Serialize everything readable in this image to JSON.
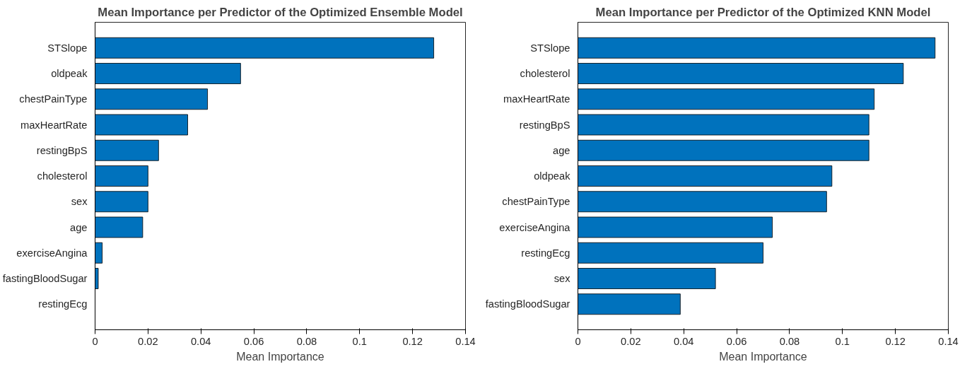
{
  "chart_data": [
    {
      "type": "bar",
      "orientation": "horizontal",
      "title": "Mean Importance per Predictor of the Optimized Ensemble Model",
      "xlabel": "Mean Importance",
      "categories": [
        "STSlope",
        "oldpeak",
        "chestPainType",
        "maxHeartRate",
        "restingBpS",
        "cholesterol",
        "sex",
        "age",
        "exerciseAngina",
        "fastingBloodSugar",
        "restingEcg"
      ],
      "values": [
        0.128,
        0.055,
        0.0425,
        0.035,
        0.024,
        0.02,
        0.02,
        0.018,
        0.0027,
        0.0012,
        0
      ],
      "color": "#0072bd",
      "xlim": [
        0,
        0.14
      ],
      "xticks": [
        0,
        0.02,
        0.04,
        0.06,
        0.08,
        0.1,
        0.12,
        0.14
      ],
      "grid": false
    },
    {
      "type": "bar",
      "orientation": "horizontal",
      "title": "Mean Importance per Predictor of the Optimized KNN Model",
      "xlabel": "Mean Importance",
      "categories": [
        "STSlope",
        "cholesterol",
        "maxHeartRate",
        "restingBpS",
        "age",
        "oldpeak",
        "chestPainType",
        "exerciseAngina",
        "restingEcg",
        "sex",
        "fastingBloodSugar"
      ],
      "values": [
        0.135,
        0.123,
        0.112,
        0.11,
        0.11,
        0.096,
        0.094,
        0.0735,
        0.07,
        0.052,
        0.0387
      ],
      "color": "#0072bd",
      "xlim": [
        0,
        0.14
      ],
      "xticks": [
        0,
        0.02,
        0.04,
        0.06,
        0.08,
        0.1,
        0.12,
        0.14
      ],
      "grid": false
    }
  ]
}
